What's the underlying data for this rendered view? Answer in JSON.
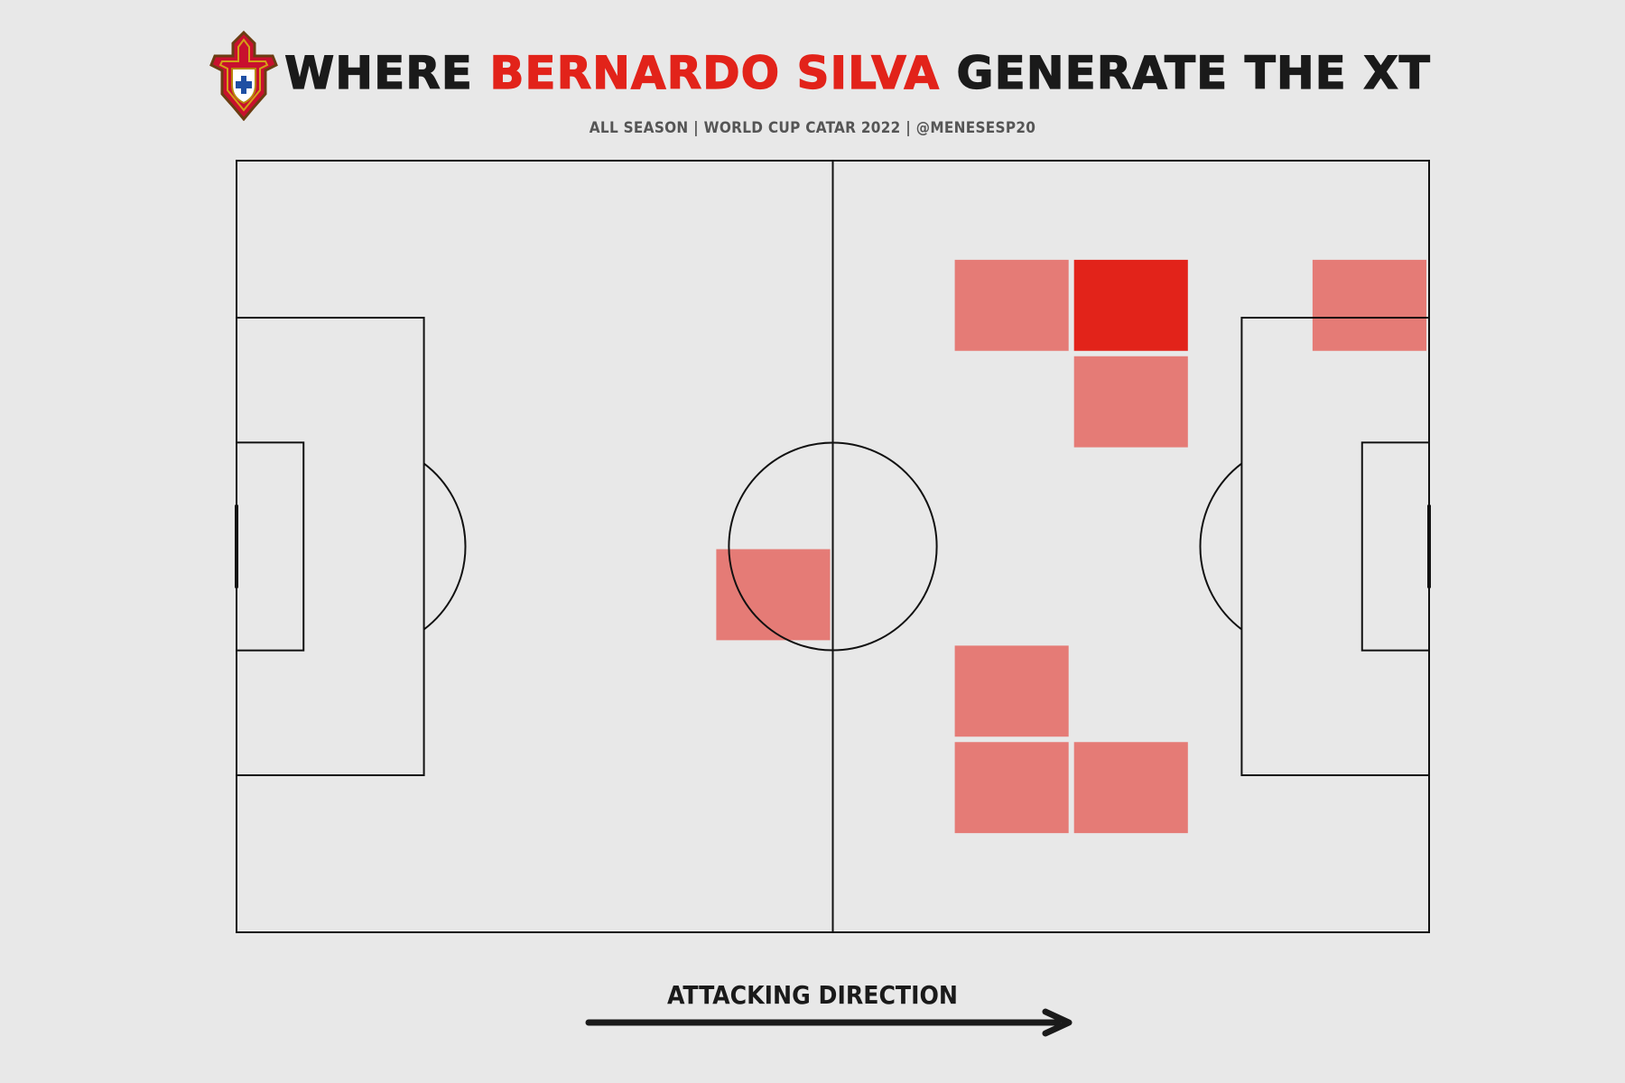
{
  "header": {
    "title_prefix": "WHERE ",
    "title_player": "BERNARDO SILVA",
    "title_suffix": " GENERATE THE XT",
    "subtitle": "ALL SEASON | WORLD CUP CATAR 2022 | @MENESESP20"
  },
  "colors": {
    "background": "#e8e8e8",
    "accent": "#e2231a",
    "cell_light": "#e57b76",
    "cell_strong": "#e2231a",
    "lines": "#111111"
  },
  "chart_data": {
    "type": "heatmap",
    "title": "WHERE BERNARDO SILVA GENERATE THE XT",
    "subtitle": "ALL SEASON | WORLD CUP CATAR 2022 | @MENESESP20",
    "pitch": {
      "length": 105,
      "width": 68
    },
    "grid": {
      "columns": 10,
      "rows": 8
    },
    "cells": [
      {
        "col": 6,
        "row": 1,
        "intensity": "medium"
      },
      {
        "col": 7,
        "row": 1,
        "intensity": "high"
      },
      {
        "col": 9,
        "row": 1,
        "intensity": "medium"
      },
      {
        "col": 7,
        "row": 2,
        "intensity": "medium"
      },
      {
        "col": 4,
        "row": 4,
        "intensity": "medium"
      },
      {
        "col": 6,
        "row": 5,
        "intensity": "medium"
      },
      {
        "col": 6,
        "row": 6,
        "intensity": "medium"
      },
      {
        "col": 7,
        "row": 6,
        "intensity": "medium"
      }
    ],
    "annotation": "ATTACKING DIRECTION",
    "direction": "left-to-right"
  }
}
